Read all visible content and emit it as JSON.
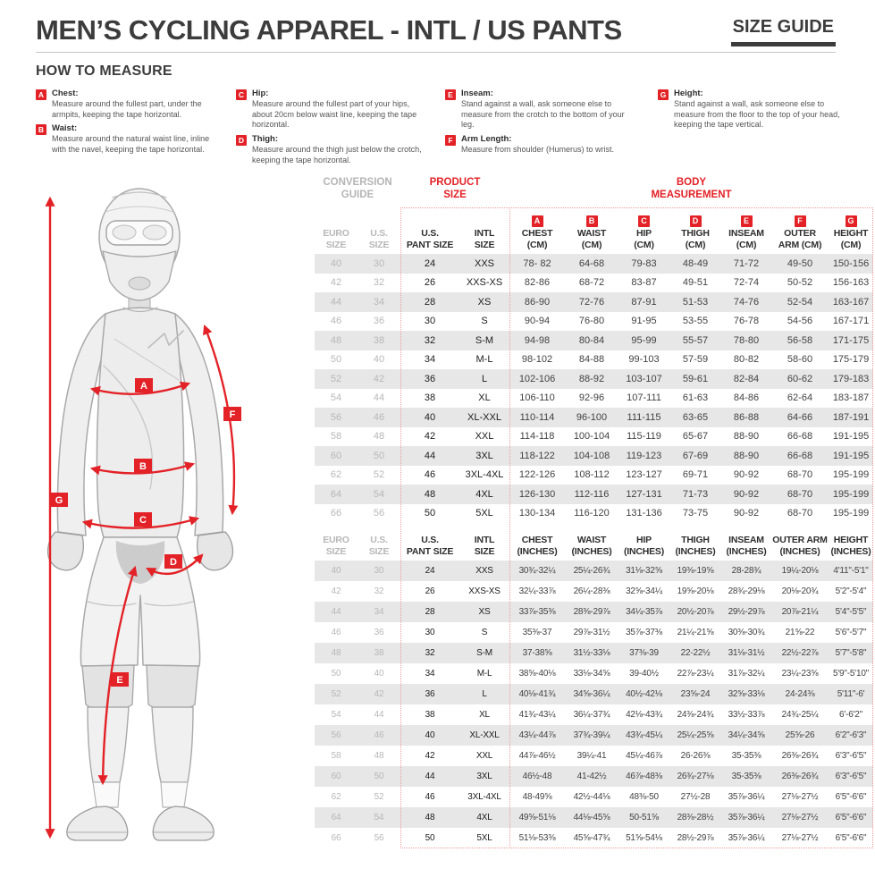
{
  "colors": {
    "accent_red": "#E32227",
    "text_dark": "#3C3C3C",
    "muted_gray": "#B5B5B5",
    "stripe_gray": "#E7E7E7"
  },
  "header": {
    "title": "MEN’S CYCLING APPAREL - INTL / US PANTS",
    "size_guide_label": "SIZE GUIDE"
  },
  "how_to_measure": {
    "heading": "HOW TO MEASURE",
    "items": [
      {
        "letter": "A",
        "label": "Chest:",
        "text": "Measure around the fullest part, under the armpits, keeping the tape horizontal."
      },
      {
        "letter": "B",
        "label": "Waist:",
        "text": "Measure around the natural waist line, inline with the navel, keeping the tape horizontal."
      },
      {
        "letter": "C",
        "label": "Hip:",
        "text": "Measure around the fullest part of your hips, about 20cm below waist line, keeping the tape horizontal."
      },
      {
        "letter": "D",
        "label": "Thigh:",
        "text": "Measure around the thigh just below the crotch, keeping the tape horizontal."
      },
      {
        "letter": "E",
        "label": "Inseam:",
        "text": "Stand against a wall, ask someone else to measure from the crotch to the bottom of your leg."
      },
      {
        "letter": "F",
        "label": "Arm Length:",
        "text": "Measure from shoulder (Humerus) to wrist."
      },
      {
        "letter": "G",
        "label": "Height:",
        "text": "Stand against a wall, ask someone else to measure from the floor to the top of your head, keeping the tape vertical."
      }
    ]
  },
  "figure": {
    "markers": [
      "A",
      "B",
      "C",
      "D",
      "E",
      "F",
      "G"
    ]
  },
  "table": {
    "section_headers": {
      "conversion_guide": "CONVERSION\nGUIDE",
      "product_size": "PRODUCT\nSIZE",
      "body_measurement": "BODY\nMEASUREMENT"
    },
    "cm": {
      "columns": [
        {
          "key": "euro-size",
          "lines": [
            "EURO",
            "SIZE"
          ],
          "muted": true
        },
        {
          "key": "us-size",
          "lines": [
            "U.S.",
            "SIZE"
          ],
          "muted": true
        },
        {
          "key": "us-pant-size",
          "lines": [
            "U.S.",
            "PANT SIZE"
          ]
        },
        {
          "key": "intl-size",
          "lines": [
            "INTL",
            "SIZE"
          ]
        },
        {
          "key": "chest",
          "chip": "A",
          "lines": [
            "CHEST",
            "(CM)"
          ]
        },
        {
          "key": "waist",
          "chip": "B",
          "lines": [
            "WAIST",
            "(CM)"
          ]
        },
        {
          "key": "hip",
          "chip": "C",
          "lines": [
            "HIP",
            "(CM)"
          ]
        },
        {
          "key": "thigh",
          "chip": "D",
          "lines": [
            "THIGH",
            "(CM)"
          ]
        },
        {
          "key": "inseam",
          "chip": "E",
          "lines": [
            "INSEAM",
            "(CM)"
          ]
        },
        {
          "key": "outer-arm",
          "chip": "F",
          "lines": [
            "OUTER",
            "ARM (CM)"
          ]
        },
        {
          "key": "height",
          "chip": "G",
          "lines": [
            "HEIGHT",
            "(CM)"
          ]
        }
      ],
      "rows": [
        [
          "40",
          "30",
          "24",
          "XXS",
          "78- 82",
          "64-68",
          "79-83",
          "48-49",
          "71-72",
          "49-50",
          "150-156"
        ],
        [
          "42",
          "32",
          "26",
          "XXS-XS",
          "82-86",
          "68-72",
          "83-87",
          "49-51",
          "72-74",
          "50-52",
          "156-163"
        ],
        [
          "44",
          "34",
          "28",
          "XS",
          "86-90",
          "72-76",
          "87-91",
          "51-53",
          "74-76",
          "52-54",
          "163-167"
        ],
        [
          "46",
          "36",
          "30",
          "S",
          "90-94",
          "76-80",
          "91-95",
          "53-55",
          "76-78",
          "54-56",
          "167-171"
        ],
        [
          "48",
          "38",
          "32",
          "S-M",
          "94-98",
          "80-84",
          "95-99",
          "55-57",
          "78-80",
          "56-58",
          "171-175"
        ],
        [
          "50",
          "40",
          "34",
          "M-L",
          "98-102",
          "84-88",
          "99-103",
          "57-59",
          "80-82",
          "58-60",
          "175-179"
        ],
        [
          "52",
          "42",
          "36",
          "L",
          "102-106",
          "88-92",
          "103-107",
          "59-61",
          "82-84",
          "60-62",
          "179-183"
        ],
        [
          "54",
          "44",
          "38",
          "XL",
          "106-110",
          "92-96",
          "107-111",
          "61-63",
          "84-86",
          "62-64",
          "183-187"
        ],
        [
          "56",
          "46",
          "40",
          "XL-XXL",
          "110-114",
          "96-100",
          "111-115",
          "63-65",
          "86-88",
          "64-66",
          "187-191"
        ],
        [
          "58",
          "48",
          "42",
          "XXL",
          "114-118",
          "100-104",
          "115-119",
          "65-67",
          "88-90",
          "66-68",
          "191-195"
        ],
        [
          "60",
          "50",
          "44",
          "3XL",
          "118-122",
          "104-108",
          "119-123",
          "67-69",
          "88-90",
          "66-68",
          "191-195"
        ],
        [
          "62",
          "52",
          "46",
          "3XL-4XL",
          "122-126",
          "108-112",
          "123-127",
          "69-71",
          "90-92",
          "68-70",
          "195-199"
        ],
        [
          "64",
          "54",
          "48",
          "4XL",
          "126-130",
          "112-116",
          "127-131",
          "71-73",
          "90-92",
          "68-70",
          "195-199"
        ],
        [
          "66",
          "56",
          "50",
          "5XL",
          "130-134",
          "116-120",
          "131-136",
          "73-75",
          "90-92",
          "68-70",
          "195-199"
        ]
      ]
    },
    "inches": {
      "columns": [
        {
          "key": "euro-size",
          "lines": [
            "EURO",
            "SIZE"
          ],
          "muted": true
        },
        {
          "key": "us-size",
          "lines": [
            "U.S.",
            "SIZE"
          ],
          "muted": true
        },
        {
          "key": "us-pant-size",
          "lines": [
            "U.S.",
            "PANT SIZE"
          ]
        },
        {
          "key": "intl-size",
          "lines": [
            "INTL",
            "SIZE"
          ]
        },
        {
          "key": "chest",
          "lines": [
            "CHEST",
            "(INCHES)"
          ]
        },
        {
          "key": "waist",
          "lines": [
            "WAIST",
            "(INCHES)"
          ]
        },
        {
          "key": "hip",
          "lines": [
            "HIP",
            "(INCHES)"
          ]
        },
        {
          "key": "thigh",
          "lines": [
            "THIGH",
            "(INCHES)"
          ]
        },
        {
          "key": "inseam",
          "lines": [
            "INSEAM",
            "(INCHES)"
          ]
        },
        {
          "key": "outer-arm",
          "lines": [
            "OUTER ARM",
            "(INCHES)"
          ]
        },
        {
          "key": "height",
          "lines": [
            "HEIGHT",
            "(INCHES)"
          ]
        }
      ],
      "rows": [
        [
          "40",
          "30",
          "24",
          "XXS",
          "30¾-32¼",
          "25¼-26¾",
          "31⅛-32⅝",
          "19⅜-19⅝",
          "28-28¾",
          "19¼-20⅛",
          "4'11\"-5'1\""
        ],
        [
          "42",
          "32",
          "26",
          "XXS-XS",
          "32¼-33⅞",
          "26¼-28⅜",
          "32⅝-34¼",
          "19⅝-20⅛",
          "28¾-29⅛",
          "20⅛-20¾",
          "5'2\"-5'4\""
        ],
        [
          "44",
          "34",
          "28",
          "XS",
          "33⅞-35⅜",
          "28⅜-29⅞",
          "34¼-35⅞",
          "20½-20⅞",
          "29½-29⅞",
          "20⅞-21¼",
          "5'4\"-5'5\""
        ],
        [
          "46",
          "36",
          "30",
          "S",
          "35⅜-37",
          "29⅞-31½",
          "35⅞-37⅜",
          "21¼-21⅝",
          "30⅜-30¾",
          "21⅝-22",
          "5'6\"-5'7\""
        ],
        [
          "48",
          "38",
          "32",
          "S-M",
          "37-38⅝",
          "31½-33⅛",
          "37⅜-39",
          "22-22½",
          "31⅛-31½",
          "22½-22⅞",
          "5'7\"-5'8\""
        ],
        [
          "50",
          "40",
          "34",
          "M-L",
          "38⅝-40⅛",
          "33⅛-34⅝",
          "39-40½",
          "22⅞-23¼",
          "31⅞-32¼",
          "23¼-23⅝",
          "5'9\"-5'10\""
        ],
        [
          "52",
          "42",
          "36",
          "L",
          "40⅛-41¾",
          "34⅝-36¼",
          "40½-42⅛",
          "23⅝-24",
          "32⅝-33⅛",
          "24-24⅜",
          "5'11\"-6'"
        ],
        [
          "54",
          "44",
          "38",
          "XL",
          "41¾-43¼",
          "36¼-37¾",
          "42⅛-43¾",
          "24⅜-24¾",
          "33½-33⅞",
          "24¾-25¼",
          "6'-6'2\""
        ],
        [
          "56",
          "46",
          "40",
          "XL-XXL",
          "43¼-44⅞",
          "37¾-39¼",
          "43¾-45¼",
          "25¼-25⅝",
          "34¼-34⅝",
          "25⅝-26",
          "6'2\"-6'3\""
        ],
        [
          "58",
          "48",
          "42",
          "XXL",
          "44⅞-46½",
          "39¼-41",
          "45¼-46⅞",
          "26-26⅜",
          "35-35⅜",
          "26⅜-26¾",
          "6'3\"-6'5\""
        ],
        [
          "60",
          "50",
          "44",
          "3XL",
          "46½-48",
          "41-42½",
          "46⅞-48⅜",
          "26¾-27⅛",
          "35-35⅜",
          "26⅜-26¾",
          "6'3\"-6'5\""
        ],
        [
          "62",
          "52",
          "46",
          "3XL-4XL",
          "48-49⅝",
          "42½-44⅛",
          "48⅜-50",
          "27½-28",
          "35⅞-36¼",
          "27⅛-27½",
          "6'5\"-6'6\""
        ],
        [
          "64",
          "54",
          "48",
          "4XL",
          "49⅝-51⅛",
          "44⅛-45⅝",
          "50-51⅝",
          "28⅜-28½",
          "35⅞-36¼",
          "27⅛-27½",
          "6'5\"-6'6\""
        ],
        [
          "66",
          "56",
          "50",
          "5XL",
          "51⅛-53⅜",
          "45⅝-47¾",
          "51⅝-54⅛",
          "28½-29⅞",
          "35⅞-36¼",
          "27⅛-27½",
          "6'5\"-6'6\""
        ]
      ]
    }
  }
}
